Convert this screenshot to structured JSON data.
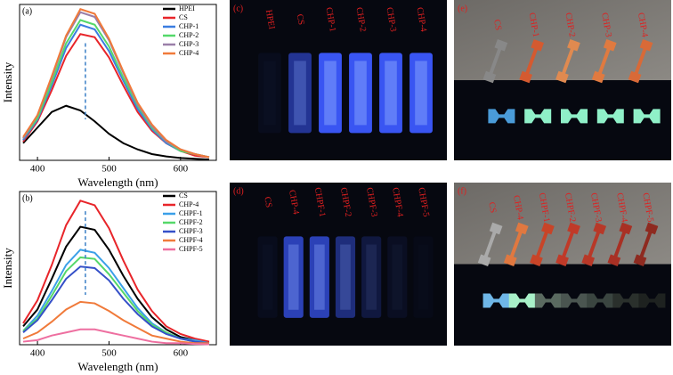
{
  "chart_data": [
    {
      "type": "line",
      "panel_label": "(a)",
      "xlabel": "Wavelength (nm)",
      "ylabel": "Intensity",
      "x": [
        380,
        400,
        420,
        440,
        460,
        480,
        500,
        520,
        540,
        560,
        580,
        600,
        620,
        640
      ],
      "xlim": [
        375,
        650
      ],
      "xticks": [
        400,
        500,
        600
      ],
      "ylim": [
        0,
        100
      ],
      "series": [
        {
          "name": "HPEI",
          "color": "#000000",
          "values": [
            11,
            21,
            31,
            35,
            32,
            25,
            17,
            11,
            7,
            4,
            2.5,
            1.5,
            1,
            0.5
          ]
        },
        {
          "name": "CS",
          "color": "#e8252a",
          "values": [
            12,
            25,
            45,
            67,
            81,
            79,
            66,
            48,
            31,
            19,
            11,
            6,
            3,
            2
          ]
        },
        {
          "name": "CHP-1",
          "color": "#3b7de0",
          "values": [
            13,
            26,
            48,
            72,
            87,
            84,
            70,
            51,
            33,
            20,
            11,
            6,
            4,
            2
          ]
        },
        {
          "name": "CHP-2",
          "color": "#55d86a",
          "values": [
            14,
            27,
            50,
            75,
            90,
            87,
            73,
            53,
            35,
            21,
            12,
            6,
            4,
            2
          ]
        },
        {
          "name": "CHP-3",
          "color": "#9a7fa8",
          "values": [
            14,
            29,
            53,
            79,
            95,
            92,
            77,
            56,
            36,
            22,
            12,
            7,
            4,
            2
          ]
        },
        {
          "name": "CHP-4",
          "color": "#f07a3a",
          "values": [
            15,
            29,
            54,
            80,
            97,
            94,
            78,
            57,
            37,
            23,
            13,
            7,
            4,
            2
          ]
        }
      ]
    },
    {
      "type": "line",
      "panel_label": "(b)",
      "xlabel": "Wavelength (nm)",
      "ylabel": "Intensity",
      "x": [
        380,
        400,
        420,
        440,
        460,
        480,
        500,
        520,
        540,
        560,
        580,
        600,
        620,
        640
      ],
      "xlim": [
        375,
        650
      ],
      "xticks": [
        400,
        500,
        600
      ],
      "ylim": [
        0,
        100
      ],
      "series": [
        {
          "name": "CS",
          "color": "#000000",
          "values": [
            12,
            23,
            43,
            64,
            77,
            75,
            62,
            45,
            30,
            18,
            10,
            5,
            3,
            2
          ]
        },
        {
          "name": "CHP-4",
          "color": "#e8252a",
          "values": [
            14,
            29,
            52,
            78,
            94,
            91,
            76,
            55,
            36,
            22,
            12,
            7,
            4,
            2
          ]
        },
        {
          "name": "CHPF-1",
          "color": "#3ba0e8",
          "values": [
            9,
            19,
            35,
            52,
            62,
            60,
            50,
            37,
            24,
            14,
            8,
            4,
            3,
            1
          ]
        },
        {
          "name": "CHPF-2",
          "color": "#55d86a",
          "values": [
            9,
            17,
            32,
            48,
            57,
            56,
            46,
            34,
            22,
            13,
            8,
            4,
            2,
            1
          ]
        },
        {
          "name": "CHPF-3",
          "color": "#3550c8",
          "values": [
            8,
            16,
            29,
            43,
            51,
            50,
            42,
            30,
            20,
            12,
            7,
            4,
            2,
            1
          ]
        },
        {
          "name": "CHPF-4",
          "color": "#f07a3a",
          "values": [
            4,
            8,
            15,
            23,
            28,
            27,
            22,
            16,
            11,
            6,
            4,
            2,
            1,
            1
          ]
        },
        {
          "name": "CHPF-5",
          "color": "#ee6fa0",
          "values": [
            2,
            3,
            6,
            8,
            10,
            10,
            8,
            6,
            4,
            2,
            1,
            1,
            0.5,
            0.3
          ]
        }
      ]
    }
  ],
  "photos": [
    {
      "panel_label": "(c)",
      "samples": [
        "HPEI",
        "CS",
        "CHP-1",
        "CHP-2",
        "CHP-3",
        "CHP-4"
      ]
    },
    {
      "panel_label": "(d)",
      "samples": [
        "CS",
        "CHP-4",
        "CHPF-1",
        "CHPF-2",
        "CHPF-3",
        "CHPF-4",
        "CHPF-5"
      ]
    },
    {
      "panel_label": "(e)",
      "samples": [
        "CS",
        "CHP-1",
        "CHP-2",
        "CHP-3",
        "CHP-4"
      ]
    },
    {
      "panel_label": "(f)",
      "samples": [
        "CS",
        "CHP-4",
        "CHPF-1",
        "CHPF-2",
        "CHPF-3",
        "CHPF-4",
        "CHPF-5"
      ]
    }
  ]
}
